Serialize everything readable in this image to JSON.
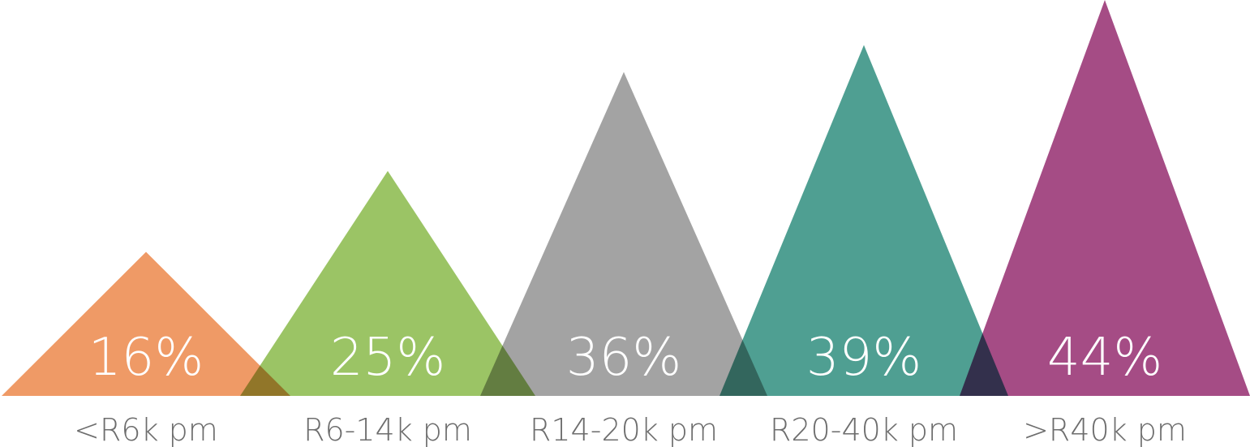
{
  "chart_data": {
    "type": "bar",
    "style": "overlapping triangles",
    "categories": [
      "<R6k pm",
      "R6-14k pm",
      "R14-20k pm",
      "R20-40k pm",
      ">R40k pm"
    ],
    "values": [
      16,
      25,
      36,
      39,
      44
    ],
    "value_labels": [
      "16%",
      "25%",
      "36%",
      "39%",
      "44%"
    ],
    "title": "",
    "xlabel": "",
    "ylabel": "",
    "ylim": [
      0,
      44
    ],
    "grid": false,
    "legend": "none",
    "colors": [
      "#ef9a66",
      "#9bc465",
      "#a3a3a3",
      "#4f9f92",
      "#a54c85"
    ]
  }
}
